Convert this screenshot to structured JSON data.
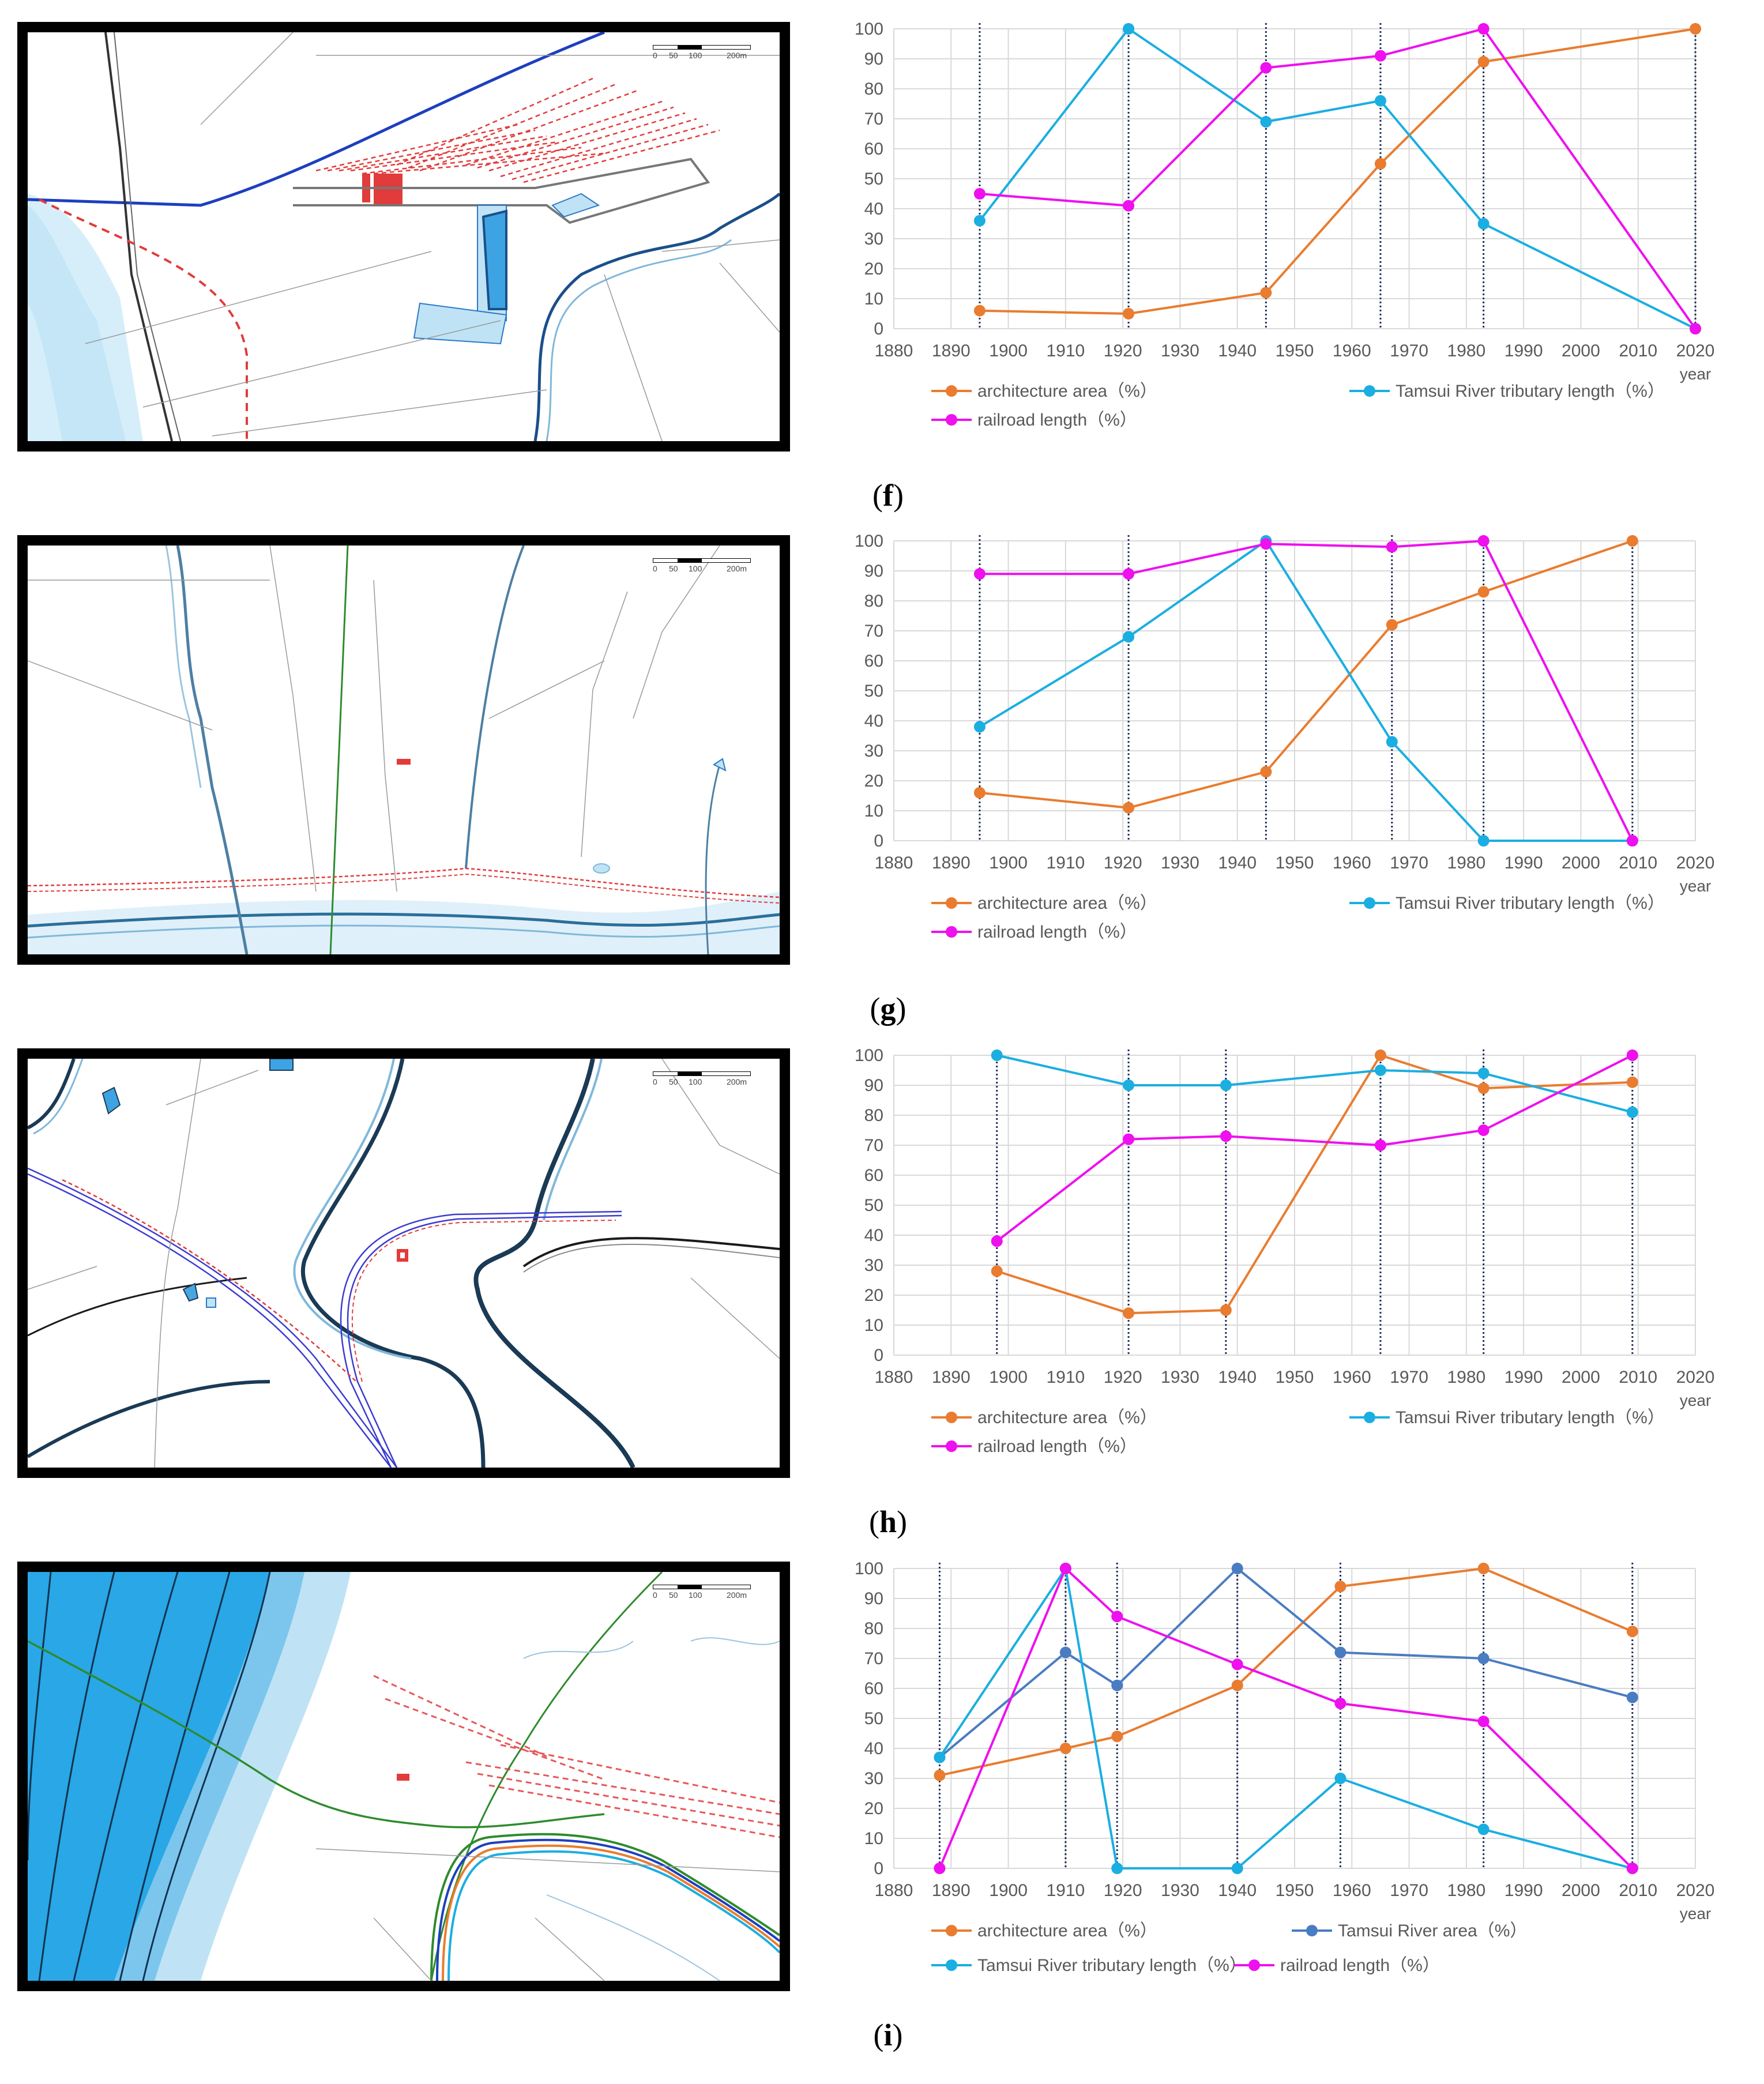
{
  "figure": {
    "scale_labels": [
      "0",
      "50",
      "100",
      "200m"
    ],
    "colors": {
      "architecture": "#E97C30",
      "tributary": "#1BAEE1",
      "railroad": "#EE10EE",
      "river_area": "#4A7CC2",
      "grid": "#d9d9d9",
      "axis_text": "#595959",
      "map_red": "#e23b3b",
      "map_blue": "#2a78c7",
      "map_lightblue": "#bfe3f5"
    },
    "panels": [
      {
        "id": "f",
        "caption_open": "(",
        "caption_letter": "f",
        "caption_close": ")",
        "chart_data": {
          "type": "line",
          "x_ticks": [
            1880,
            1890,
            1900,
            1910,
            1920,
            1930,
            1940,
            1950,
            1960,
            1970,
            1980,
            1990,
            2000,
            2010,
            2020
          ],
          "y_ticks": [
            0,
            10,
            20,
            30,
            40,
            50,
            60,
            70,
            80,
            90,
            100
          ],
          "xlim": [
            1880,
            2020
          ],
          "ylim": [
            0,
            100
          ],
          "xlabel": "year",
          "grid": true,
          "legend_position": "bottom",
          "vlines": [
            1895,
            1921,
            1945,
            1965,
            1983,
            2020
          ],
          "series": [
            {
              "name": "architecture area（%）",
              "color": "#E97C30",
              "x": [
                1895,
                1921,
                1945,
                1965,
                1983,
                2020
              ],
              "y": [
                6,
                5,
                12,
                55,
                89,
                100
              ]
            },
            {
              "name": "Tamsui River tributary length（%）",
              "color": "#1BAEE1",
              "x": [
                1895,
                1921,
                1945,
                1965,
                1983,
                2020
              ],
              "y": [
                36,
                100,
                69,
                76,
                35,
                0
              ]
            },
            {
              "name": "railroad length（%）",
              "color": "#EE10EE",
              "x": [
                1895,
                1921,
                1945,
                1965,
                1983,
                2020
              ],
              "y": [
                45,
                41,
                87,
                91,
                100,
                0
              ]
            }
          ]
        }
      },
      {
        "id": "g",
        "caption_open": "(",
        "caption_letter": "g",
        "caption_close": ")",
        "chart_data": {
          "type": "line",
          "x_ticks": [
            1880,
            1890,
            1900,
            1910,
            1920,
            1930,
            1940,
            1950,
            1960,
            1970,
            1980,
            1990,
            2000,
            2010,
            2020
          ],
          "y_ticks": [
            0,
            10,
            20,
            30,
            40,
            50,
            60,
            70,
            80,
            90,
            100
          ],
          "xlim": [
            1880,
            2020
          ],
          "ylim": [
            0,
            100
          ],
          "xlabel": "year",
          "grid": true,
          "legend_position": "bottom",
          "vlines": [
            1895,
            1921,
            1945,
            1967,
            1983,
            2009
          ],
          "series": [
            {
              "name": "architecture area（%）",
              "color": "#E97C30",
              "x": [
                1895,
                1921,
                1945,
                1967,
                1983,
                2009
              ],
              "y": [
                16,
                11,
                23,
                72,
                83,
                100
              ]
            },
            {
              "name": "Tamsui River tributary length（%）",
              "color": "#1BAEE1",
              "x": [
                1895,
                1921,
                1945,
                1967,
                1983,
                2009
              ],
              "y": [
                38,
                68,
                100,
                33,
                0,
                0
              ]
            },
            {
              "name": "railroad length（%）",
              "color": "#EE10EE",
              "x": [
                1895,
                1921,
                1945,
                1967,
                1983,
                2009
              ],
              "y": [
                89,
                89,
                99,
                98,
                100,
                0
              ]
            }
          ]
        }
      },
      {
        "id": "h",
        "caption_open": "(",
        "caption_letter": "h",
        "caption_close": ")",
        "chart_data": {
          "type": "line",
          "x_ticks": [
            1880,
            1890,
            1900,
            1910,
            1920,
            1930,
            1940,
            1950,
            1960,
            1970,
            1980,
            1990,
            2000,
            2010,
            2020
          ],
          "y_ticks": [
            0,
            10,
            20,
            30,
            40,
            50,
            60,
            70,
            80,
            90,
            100
          ],
          "xlim": [
            1880,
            2020
          ],
          "ylim": [
            0,
            100
          ],
          "xlabel": "year",
          "grid": true,
          "legend_position": "bottom",
          "vlines": [
            1898,
            1921,
            1938,
            1965,
            1983,
            2009
          ],
          "series": [
            {
              "name": "architecture area（%）",
              "color": "#E97C30",
              "x": [
                1898,
                1921,
                1938,
                1965,
                1983,
                2009
              ],
              "y": [
                28,
                14,
                15,
                100,
                89,
                91
              ]
            },
            {
              "name": "Tamsui River tributary length（%）",
              "color": "#1BAEE1",
              "x": [
                1898,
                1921,
                1938,
                1965,
                1983,
                2009
              ],
              "y": [
                100,
                90,
                90,
                95,
                94,
                81
              ]
            },
            {
              "name": "railroad length（%）",
              "color": "#EE10EE",
              "x": [
                1898,
                1921,
                1938,
                1965,
                1983,
                2009
              ],
              "y": [
                38,
                72,
                73,
                70,
                75,
                100
              ]
            }
          ]
        }
      },
      {
        "id": "i",
        "caption_open": "(",
        "caption_letter": "i",
        "caption_close": ")",
        "chart_data": {
          "type": "line",
          "x_ticks": [
            1880,
            1890,
            1900,
            1910,
            1920,
            1930,
            1940,
            1950,
            1960,
            1970,
            1980,
            1990,
            2000,
            2010,
            2020
          ],
          "y_ticks": [
            0,
            10,
            20,
            30,
            40,
            50,
            60,
            70,
            80,
            90,
            100
          ],
          "xlim": [
            1880,
            2020
          ],
          "ylim": [
            0,
            100
          ],
          "xlabel": "year",
          "grid": true,
          "legend_position": "bottom",
          "vlines": [
            1888,
            1910,
            1919,
            1940,
            1958,
            1983,
            2009
          ],
          "series": [
            {
              "name": "architecture area（%）",
              "color": "#E97C30",
              "x": [
                1888,
                1910,
                1919,
                1940,
                1958,
                1983,
                2009
              ],
              "y": [
                31,
                40,
                44,
                61,
                94,
                100,
                79
              ]
            },
            {
              "name": "Tamsui River area（%）",
              "color": "#4A7CC2",
              "x": [
                1888,
                1910,
                1919,
                1940,
                1958,
                1983,
                2009
              ],
              "y": [
                37,
                72,
                61,
                100,
                72,
                70,
                57
              ]
            },
            {
              "name": "Tamsui River tributary length（%）",
              "color": "#1BAEE1",
              "x": [
                1888,
                1910,
                1919,
                1940,
                1958,
                1983,
                2009
              ],
              "y": [
                37,
                100,
                0,
                0,
                30,
                13,
                0
              ]
            },
            {
              "name": "railroad length（%）",
              "color": "#EE10EE",
              "x": [
                1888,
                1910,
                1919,
                1940,
                1958,
                1983,
                2009
              ],
              "y": [
                0,
                100,
                84,
                68,
                55,
                49,
                0
              ]
            }
          ]
        }
      }
    ]
  }
}
